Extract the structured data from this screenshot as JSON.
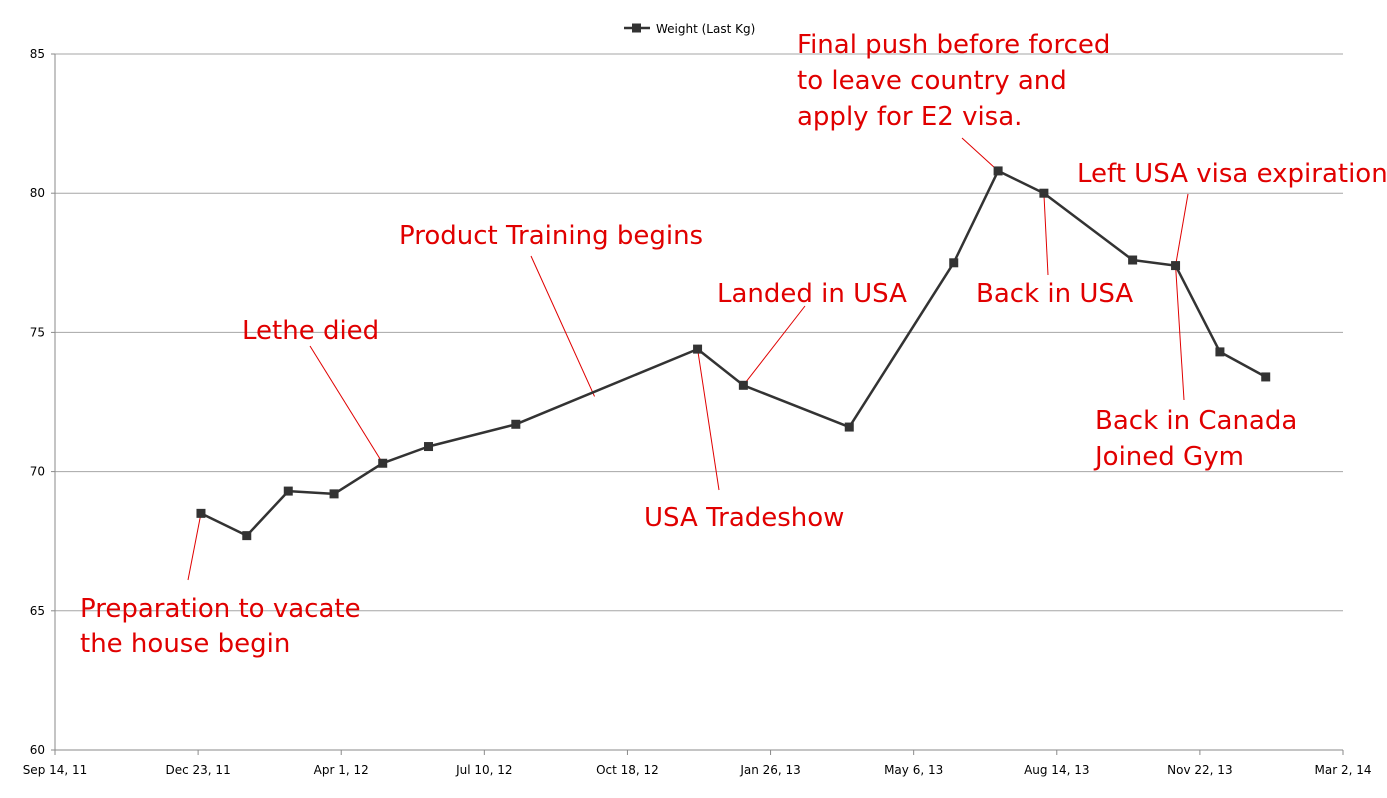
{
  "chart_data": {
    "type": "line",
    "title": "",
    "xlabel": "",
    "ylabel": "",
    "ylim": [
      60,
      85
    ],
    "y_ticks": [
      60,
      65,
      70,
      75,
      80,
      85
    ],
    "xlim": [
      "2011-09-14",
      "2014-03-02"
    ],
    "x_ticks": [
      {
        "date": "2011-09-14",
        "label": "Sep 14, 11"
      },
      {
        "date": "2011-12-23",
        "label": "Dec 23, 11"
      },
      {
        "date": "2012-04-01",
        "label": "Apr 1, 12"
      },
      {
        "date": "2012-07-10",
        "label": "Jul 10, 12"
      },
      {
        "date": "2012-10-18",
        "label": "Oct 18, 12"
      },
      {
        "date": "2013-01-26",
        "label": "Jan 26, 13"
      },
      {
        "date": "2013-05-06",
        "label": "May 6, 13"
      },
      {
        "date": "2013-08-14",
        "label": "Aug 14, 13"
      },
      {
        "date": "2013-11-22",
        "label": "Nov 22, 13"
      },
      {
        "date": "2014-03-02",
        "label": "Mar 2, 14"
      }
    ],
    "grid": true,
    "legend": {
      "position": "top-center"
    },
    "series": [
      {
        "name": "Weight (Last Kg)",
        "color": "#333333",
        "marker": "square",
        "points": [
          {
            "x": "2011-12-25",
            "y": 68.5
          },
          {
            "x": "2012-01-26",
            "y": 67.7
          },
          {
            "x": "2012-02-24",
            "y": 69.3
          },
          {
            "x": "2012-03-27",
            "y": 69.2
          },
          {
            "x": "2012-04-30",
            "y": 70.3
          },
          {
            "x": "2012-06-01",
            "y": 70.9
          },
          {
            "x": "2012-08-01",
            "y": 71.7
          },
          {
            "x": "2012-12-06",
            "y": 74.4
          },
          {
            "x": "2013-01-07",
            "y": 73.1
          },
          {
            "x": "2013-03-22",
            "y": 71.6
          },
          {
            "x": "2013-06-03",
            "y": 77.5
          },
          {
            "x": "2013-07-04",
            "y": 80.8
          },
          {
            "x": "2013-08-05",
            "y": 80.0
          },
          {
            "x": "2013-10-06",
            "y": 77.6
          },
          {
            "x": "2013-11-05",
            "y": 77.4
          },
          {
            "x": "2013-12-06",
            "y": 74.3
          },
          {
            "x": "2014-01-07",
            "y": 73.4
          }
        ]
      }
    ],
    "annotations": [
      {
        "lines": [
          "Preparation to vacate",
          "the house begin"
        ],
        "color": "#e00000",
        "target": {
          "x": "2011-12-25",
          "y": 68.5
        }
      },
      {
        "lines": [
          "Lethe died"
        ],
        "color": "#e00000",
        "target": {
          "x": "2012-04-30",
          "y": 70.3
        }
      },
      {
        "lines": [
          "Product Training begins"
        ],
        "color": "#e00000",
        "target": {
          "x": "2012-09-25",
          "y": 72.7
        }
      },
      {
        "lines": [
          "USA Tradeshow"
        ],
        "color": "#e00000",
        "target": {
          "x": "2012-12-06",
          "y": 74.4
        }
      },
      {
        "lines": [
          "Landed in USA"
        ],
        "color": "#e00000",
        "target": {
          "x": "2013-01-07",
          "y": 73.1
        }
      },
      {
        "lines": [
          "Final push before forced",
          "to leave country and",
          "apply for E2 visa."
        ],
        "color": "#e00000",
        "target": {
          "x": "2013-07-04",
          "y": 80.8
        }
      },
      {
        "lines": [
          "Back in USA"
        ],
        "color": "#e00000",
        "target": {
          "x": "2013-08-05",
          "y": 80.0
        }
      },
      {
        "lines": [
          "Left USA visa expiration"
        ],
        "color": "#e00000",
        "target": {
          "x": "2013-11-05",
          "y": 77.4
        }
      },
      {
        "lines": [
          "Back in Canada",
          "Joined Gym"
        ],
        "color": "#e00000",
        "target": {
          "x": "2013-11-05",
          "y": 77.4
        }
      }
    ]
  }
}
